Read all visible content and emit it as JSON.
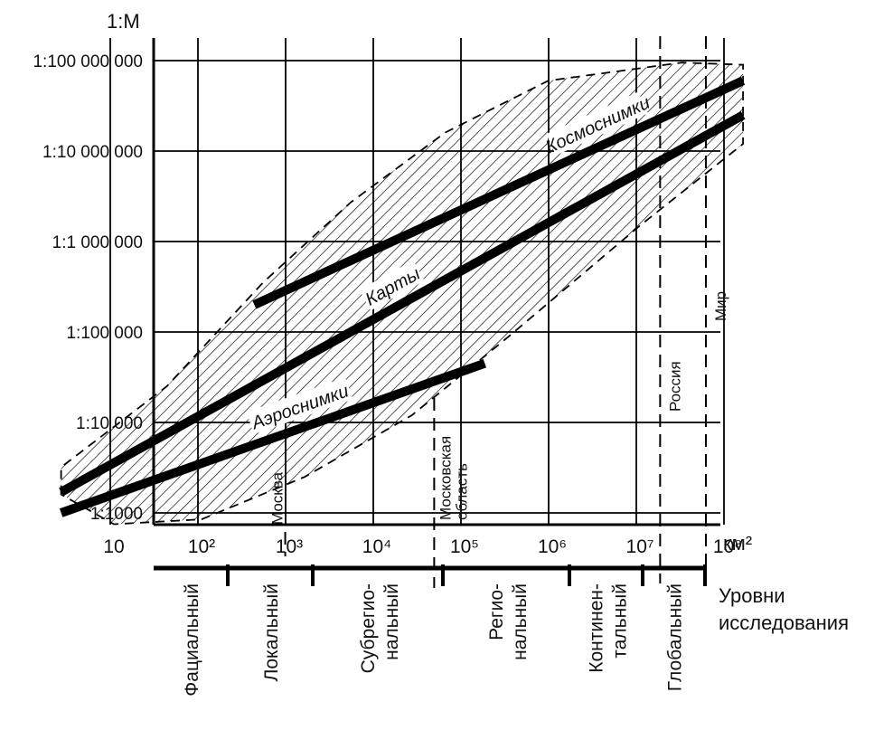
{
  "chart_data": {
    "type": "line",
    "title": "",
    "ylabel": "1:M",
    "xlabel": "км²",
    "x_scale": "log",
    "y_scale": "log",
    "x_ticks": [
      {
        "value": 10,
        "label": "10"
      },
      {
        "value": 100,
        "label": "10²"
      },
      {
        "value": 1000,
        "label": "10³"
      },
      {
        "value": 10000,
        "label": "10⁴"
      },
      {
        "value": 100000,
        "label": "10⁵"
      },
      {
        "value": 1000000,
        "label": "10⁶"
      },
      {
        "value": 10000000,
        "label": "10⁷"
      },
      {
        "value": 100000000,
        "label": "10⁸"
      }
    ],
    "y_ticks": [
      {
        "value": 1000,
        "label": "1:1000"
      },
      {
        "value": 10000,
        "label": "1:10 000"
      },
      {
        "value": 100000,
        "label": "1:100 000"
      },
      {
        "value": 1000000,
        "label": "1:1 000 000"
      },
      {
        "value": 10000000,
        "label": "1:10 000 000"
      },
      {
        "value": 100000000,
        "label": "1:100 000 000"
      }
    ],
    "xlim": [
      2.5,
      200000000
    ],
    "ylim": [
      700,
      150000000
    ],
    "series": [
      {
        "name": "Космоснимки",
        "points": [
          [
            400,
            200000
          ],
          [
            150000000,
            60000000
          ]
        ]
      },
      {
        "name": "Карты",
        "points": [
          [
            2.5,
            1700
          ],
          [
            150000000,
            25000000
          ]
        ]
      },
      {
        "name": "Аэроснимки",
        "points": [
          [
            2.5,
            1000
          ],
          [
            170000,
            45000
          ]
        ]
      }
    ],
    "envelope": [
      [
        2.5,
        1600
      ],
      [
        2.5,
        3200
      ],
      [
        40,
        25000
      ],
      [
        500,
        350000
      ],
      [
        5000,
        2700000
      ],
      [
        60000,
        16000000
      ],
      [
        900000,
        60000000
      ],
      [
        30000000,
        95000000
      ],
      [
        150000000,
        90000000
      ],
      [
        150000000,
        12000000
      ],
      [
        10000000,
        1500000
      ],
      [
        300000,
        85000
      ],
      [
        25000,
        12000
      ],
      [
        1500,
        2500
      ],
      [
        100,
        850
      ],
      [
        10,
        750
      ]
    ],
    "region_markers": [
      {
        "label": "Москва",
        "x": 900
      },
      {
        "label": "Московская\nобласть",
        "x": 45000
      },
      {
        "label": "Россия",
        "x": 17000000
      },
      {
        "label": "Мир",
        "x": 510000000
      }
    ]
  },
  "levels": {
    "title_line1": "Уровни",
    "title_line2": "исследования",
    "items": [
      {
        "line1": "Фациальный",
        "line2": ""
      },
      {
        "line1": "Локальный",
        "line2": ""
      },
      {
        "line1": "Субрегио-",
        "line2": "нальный"
      },
      {
        "line1": "Регио-",
        "line2": "нальный"
      },
      {
        "line1": "Континен-",
        "line2": "тальный"
      },
      {
        "line1": "Глобальный",
        "line2": ""
      }
    ]
  }
}
